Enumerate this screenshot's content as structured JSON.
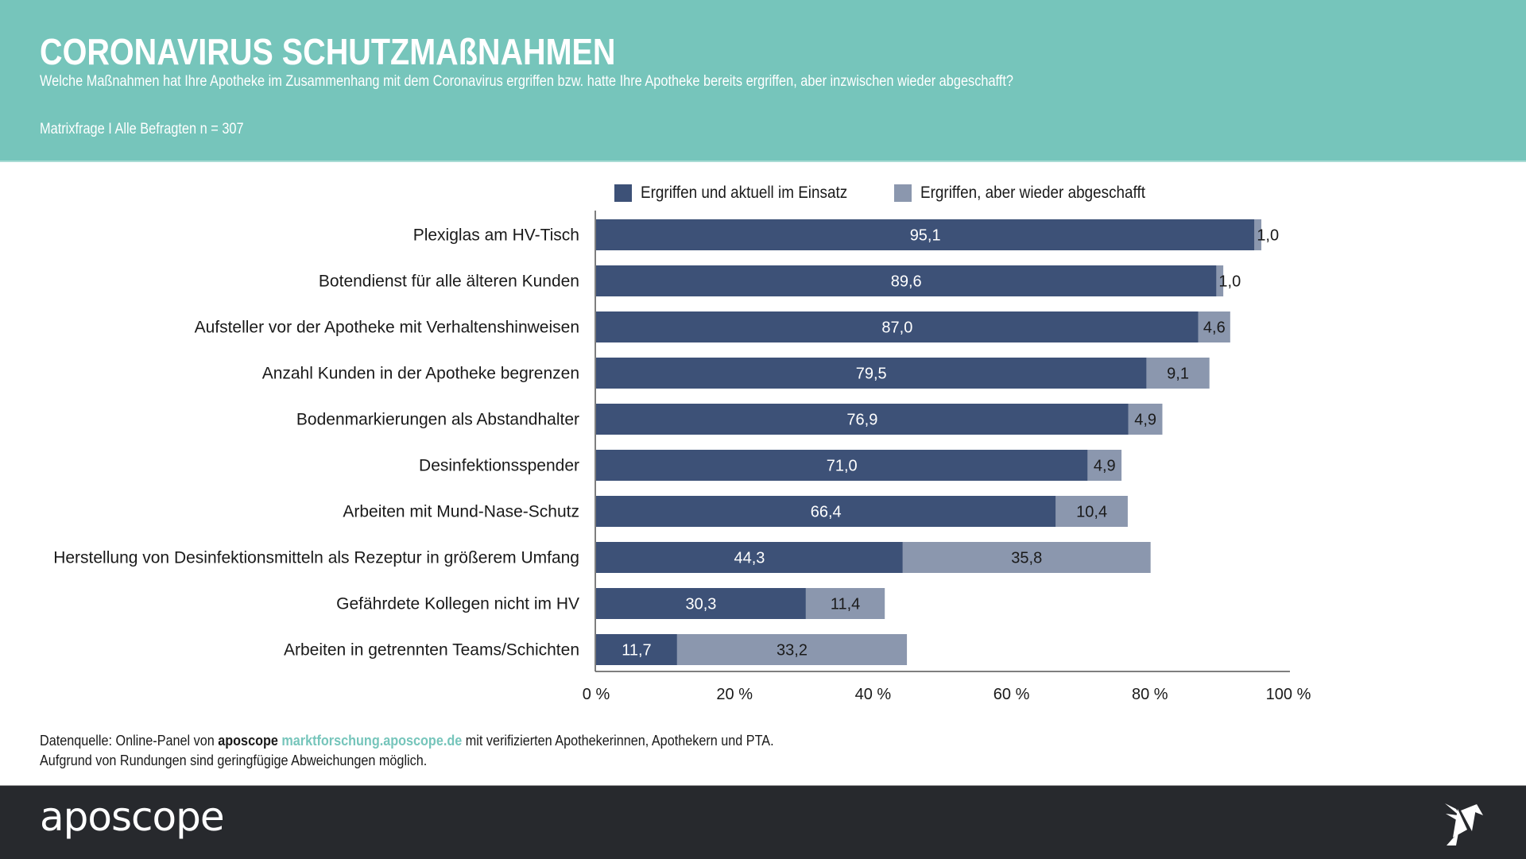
{
  "header": {
    "title": "CORONAVIRUS SCHUTZMAßNAHMEN",
    "subtitle": "Welche Maßnahmen hat Ihre Apotheke im Zusammenhang mit dem Coronavirus ergriffen bzw. hatte Ihre Apotheke bereits ergriffen, aber inzwischen wieder abgeschafft?",
    "meta": "Matrixfrage I Alle Befragten n = 307",
    "background_color": "#76c5bb"
  },
  "chart_data": {
    "type": "bar",
    "orientation": "horizontal",
    "stacked": true,
    "title": "",
    "xlabel": "",
    "ylabel": "",
    "xlim": [
      0,
      100
    ],
    "x_ticks": [
      "0 %",
      "20 %",
      "40 %",
      "60 %",
      "80 %",
      "100 %"
    ],
    "x_tick_values": [
      0,
      20,
      40,
      60,
      80,
      100
    ],
    "grid": false,
    "legend_position": "top",
    "categories": [
      "Plexiglas am HV-Tisch",
      "Botendienst für alle älteren Kunden",
      "Aufsteller vor der Apotheke mit Verhaltenshinweisen",
      "Anzahl Kunden in der Apotheke begrenzen",
      "Bodenmarkierungen als Abstandhalter",
      "Desinfektionsspender",
      "Arbeiten mit Mund-Nase-Schutz",
      "Herstellung von Desinfektionsmitteln als Rezeptur in größerem Umfang",
      "Gefährdete Kollegen nicht im HV",
      "Arbeiten in getrennten Teams/Schichten"
    ],
    "series": [
      {
        "name": "Ergriffen und aktuell im Einsatz",
        "color": "#3d5177",
        "label_color": "#ffffff",
        "values": [
          95.1,
          89.6,
          87.0,
          79.5,
          76.9,
          71.0,
          66.4,
          44.3,
          30.3,
          11.7
        ],
        "labels": [
          "95,1",
          "89,6",
          "87,0",
          "79,5",
          "76,9",
          "71,0",
          "66,4",
          "44,3",
          "30,3",
          "11,7"
        ]
      },
      {
        "name": "Ergriffen, aber wieder abgeschafft",
        "color": "#8b97ae",
        "label_color": "#1a1a1a",
        "values": [
          1.0,
          1.0,
          4.6,
          9.1,
          4.9,
          4.9,
          10.4,
          35.8,
          11.4,
          33.2
        ],
        "labels": [
          "1,0",
          "1,0",
          "4,6",
          "9,1",
          "4,9",
          "4,9",
          "10,4",
          "35,8",
          "11,4",
          "33,2"
        ]
      }
    ]
  },
  "source": {
    "prefix": "Datenquelle: Online-Panel von ",
    "brand": "aposcope",
    "link": "marktforschung.aposcope.de",
    "suffix": " mit verifizierten Apothekerinnen, Apothekern und PTA.",
    "note": "Aufgrund von Rundungen sind geringfügige Abweichungen möglich."
  },
  "footer": {
    "logo_text": "aposcope",
    "logo_icon": "origami-bird-icon",
    "background_color": "#27292d"
  }
}
